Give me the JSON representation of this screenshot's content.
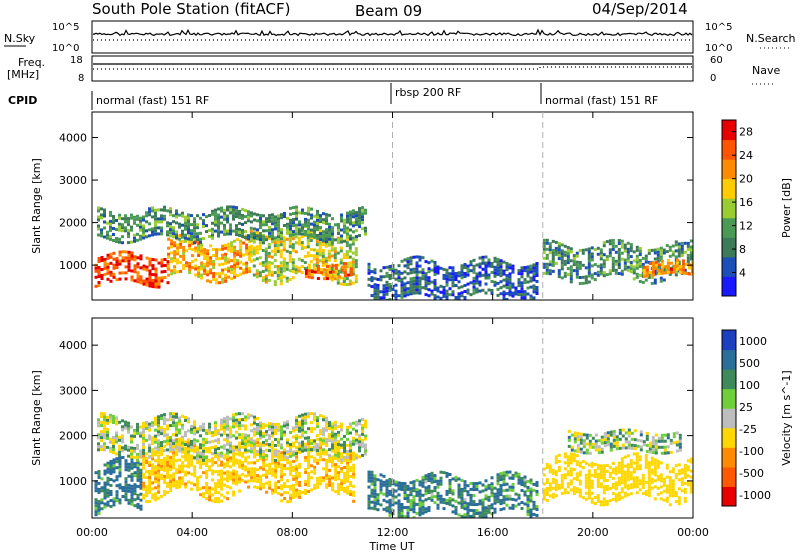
{
  "header": {
    "station": "South Pole Station (fitACF)",
    "beam": "Beam 09",
    "date": "04/Sep/2014"
  },
  "top_panels": {
    "nsky_label": "N.Sky",
    "nsky_ticks_left": [
      "10^5",
      "10^0"
    ],
    "nsearch_label": "N.Search",
    "nsearch_ticks_right": [
      "10^5",
      "10^0"
    ],
    "freq_label_1": "Freq.",
    "freq_label_2": "[MHz]",
    "freq_ticks_left": [
      "18",
      "8"
    ],
    "nave_label": "Nave",
    "nave_ticks_right": [
      "60",
      "0"
    ],
    "cpid_label": "CPID",
    "cpid_segments": [
      {
        "label": "normal (fast) 151 RF",
        "start_hour": 0
      },
      {
        "label": "rbsp 200 RF",
        "start_hour": 12
      },
      {
        "label": "normal (fast) 151 RF",
        "start_hour": 18
      }
    ]
  },
  "colors": {
    "power_scale": [
      "#1a1aff",
      "#1d4fb8",
      "#3c7a5a",
      "#4a9a55",
      "#9acd32",
      "#ffcc00",
      "#ff8c00",
      "#ff5500",
      "#e60000"
    ],
    "velocity_scale": [
      "#1c3fc0",
      "#2a6e9a",
      "#3f8a5a",
      "#6fcf3a",
      "#bdbdbd",
      "#ffd700",
      "#ff8c00",
      "#ff5a00",
      "#e60000"
    ],
    "gray_dash": "#b0b0b0"
  },
  "chart_data": [
    {
      "type": "heatmap",
      "title": "",
      "xlabel": "Time UT",
      "ylabel": "Slant Range [km]",
      "xlim": [
        0,
        24
      ],
      "ylim": [
        180,
        4600
      ],
      "x_ticks": [
        "00:00",
        "04:00",
        "08:00",
        "12:00",
        "16:00",
        "20:00",
        "00:00"
      ],
      "y_ticks": [
        1000,
        2000,
        3000,
        4000
      ],
      "colorbar": {
        "label": "Power [dB]",
        "ticks": [
          4,
          8,
          12,
          16,
          20,
          24,
          28
        ],
        "range": [
          0,
          30
        ]
      },
      "cpid_change_hours": [
        12,
        18
      ],
      "bands": [
        {
          "t0": 0.1,
          "t1": 3.0,
          "r0": 600,
          "r1": 1250,
          "value": 26
        },
        {
          "t0": 3.0,
          "t1": 6.3,
          "r0": 700,
          "r1": 1600,
          "value": 20
        },
        {
          "t0": 6.3,
          "t1": 10.6,
          "r0": 700,
          "r1": 1800,
          "value": 16
        },
        {
          "t0": 0.2,
          "t1": 10.9,
          "r0": 1600,
          "r1": 2300,
          "value": 10
        },
        {
          "t0": 8.5,
          "t1": 10.3,
          "r0": 700,
          "r1": 1050,
          "value": 24
        },
        {
          "t0": 11.0,
          "t1": 17.8,
          "r0": 250,
          "r1": 1100,
          "value": 6
        },
        {
          "t0": 18.0,
          "t1": 24.0,
          "r0": 700,
          "r1": 1500,
          "value": 10
        },
        {
          "t0": 22.0,
          "t1": 24.0,
          "r0": 750,
          "r1": 1100,
          "value": 22
        }
      ]
    },
    {
      "type": "heatmap",
      "title": "",
      "xlabel": "Time UT",
      "ylabel": "Slant Range [km]",
      "xlim": [
        0,
        24
      ],
      "ylim": [
        180,
        4600
      ],
      "x_ticks": [
        "00:00",
        "04:00",
        "08:00",
        "12:00",
        "16:00",
        "20:00",
        "00:00"
      ],
      "y_ticks": [
        1000,
        2000,
        3000,
        4000
      ],
      "colorbar": {
        "label": "Velocity [m s^-1]",
        "ticks": [
          1000,
          500,
          100,
          25,
          -25,
          -100,
          -500,
          -1000
        ]
      },
      "cpid_change_hours": [
        12,
        18
      ],
      "bands": [
        {
          "t0": 0.1,
          "t1": 2.0,
          "r0": 400,
          "r1": 1400,
          "value": 150
        },
        {
          "t0": 2.0,
          "t1": 10.5,
          "r0": 700,
          "r1": 1800,
          "value": -400
        },
        {
          "t0": 0.2,
          "t1": 10.9,
          "r0": 1600,
          "r1": 2400,
          "value": -60
        },
        {
          "t0": 11.0,
          "t1": 17.8,
          "r0": 250,
          "r1": 1100,
          "value": 120
        },
        {
          "t0": 18.0,
          "t1": 24.0,
          "r0": 600,
          "r1": 1500,
          "value": -300
        },
        {
          "t0": 19.0,
          "t1": 23.5,
          "r0": 1700,
          "r1": 2100,
          "value": -30
        }
      ]
    }
  ]
}
